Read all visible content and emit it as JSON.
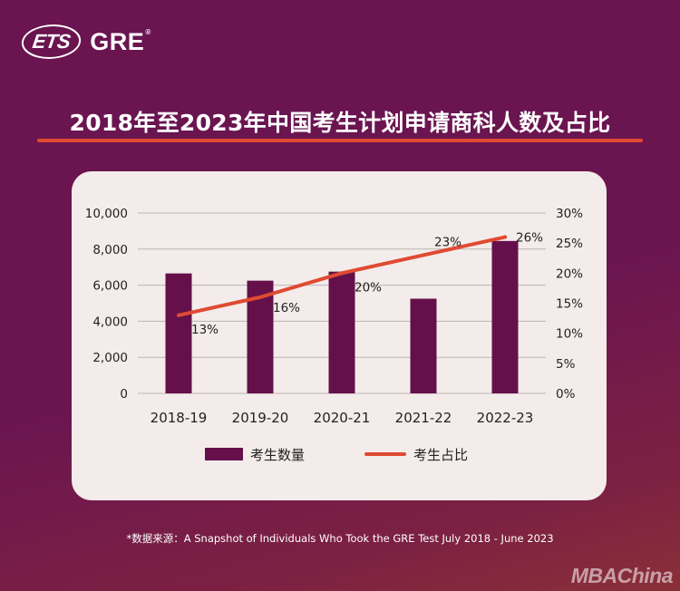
{
  "brand": {
    "ets": "ETS",
    "gre": "GRE",
    "reg_mark": "®"
  },
  "title": "2018年至2023年中国考生计划申请商科人数及占比",
  "source": "*数据来源：A Snapshot of Individuals Who Took the GRE Test July 2018 - June 2023",
  "watermark": "MBAChina",
  "colors": {
    "bar": "#65104a",
    "line": "#e04a32",
    "card": "#f4ecea",
    "grid": "#bdb5b5"
  },
  "chart_data": {
    "type": "bar",
    "categories": [
      "2018-19",
      "2019-20",
      "2020-21",
      "2021-22",
      "2022-23"
    ],
    "series": [
      {
        "name": "考生数量",
        "type": "bar",
        "axis": "left",
        "values": [
          6650,
          6250,
          6750,
          5250,
          8450
        ]
      },
      {
        "name": "考生占比",
        "type": "line",
        "axis": "right",
        "values": [
          13,
          16,
          20,
          23,
          26
        ],
        "labels": [
          "13%",
          "16%",
          "20%",
          "23%",
          "26%"
        ]
      }
    ],
    "y_left": {
      "range": [
        0,
        10000
      ],
      "ticks": [
        "0",
        "2,000",
        "4,000",
        "6,000",
        "8,000",
        "10,000"
      ]
    },
    "y_right": {
      "range": [
        0,
        30
      ],
      "ticks": [
        "0%",
        "5%",
        "10%",
        "15%",
        "20%",
        "25%",
        "30%"
      ]
    },
    "grid": true,
    "legend_position": "bottom"
  }
}
